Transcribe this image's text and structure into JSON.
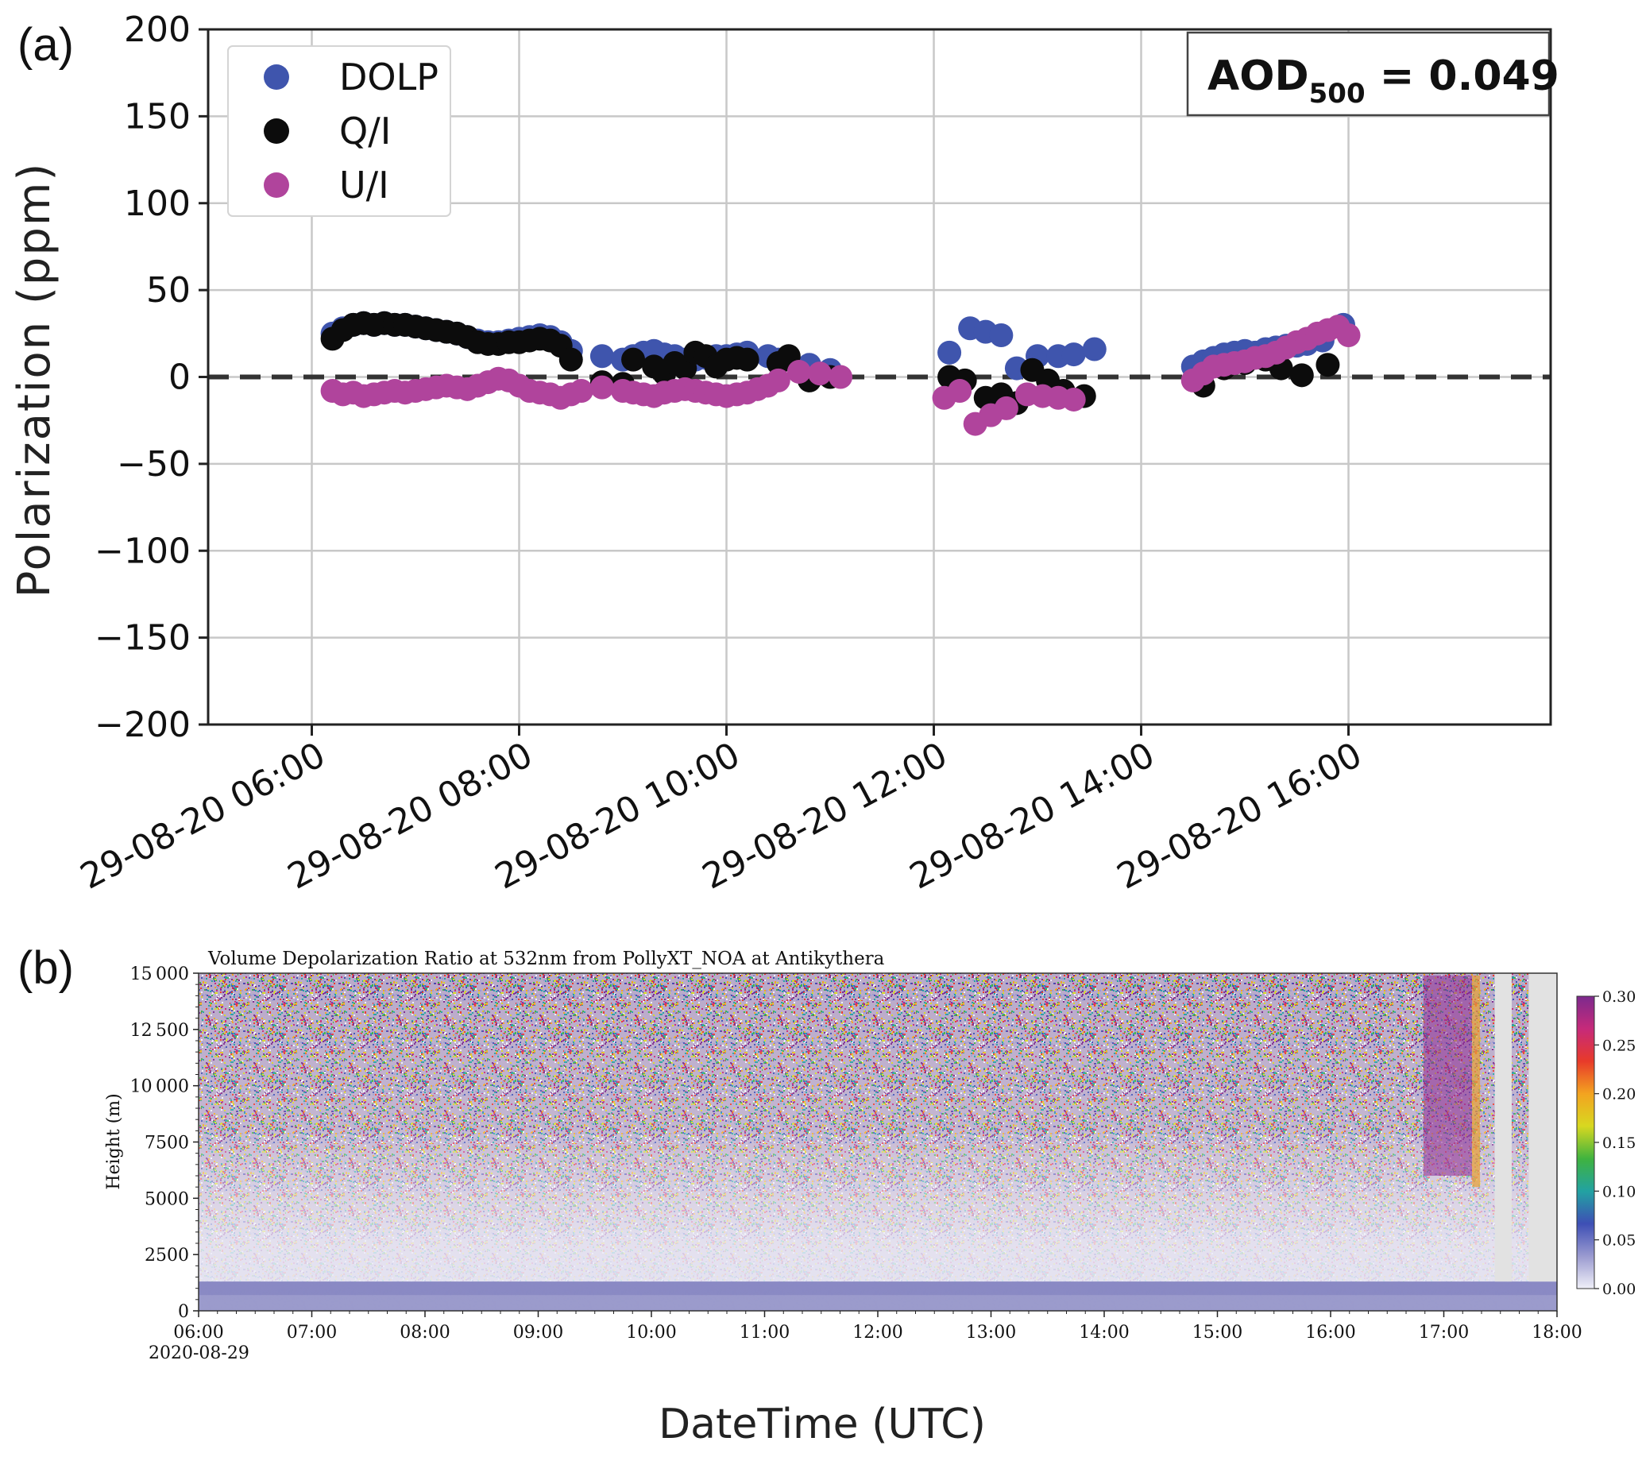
{
  "panel_labels": [
    "(a)",
    "(b)"
  ],
  "colors": {
    "DOLP": "#3f55ad",
    "Q/I": "#0c0c0c",
    "U/I": "#b0449c",
    "grid": "#c8c8c8",
    "zero_line": "#333333"
  },
  "annotation_a": {
    "prefix": "AOD",
    "subscript": "500",
    "suffix": " = 0.049"
  },
  "shared_x_label": "DateTime (UTC)",
  "chart_data": [
    {
      "type": "scatter",
      "panel": "(a)",
      "title": "",
      "xlabel": "",
      "ylabel": "Polarization  (ppm)",
      "ylim": [
        -200,
        200
      ],
      "yticks": [
        200,
        150,
        100,
        50,
        0,
        -50,
        -100,
        -150,
        -200
      ],
      "ytick_labels": [
        "200",
        "150",
        "100",
        "50",
        "0",
        "−50",
        "−100",
        "−150",
        "−200"
      ],
      "xlim_hours": [
        5.0,
        17.95
      ],
      "xticks_hours": [
        6,
        8,
        10,
        12,
        14,
        16
      ],
      "xtick_labels": [
        "29-08-20 06:00",
        "29-08-20 08:00",
        "29-08-20 10:00",
        "29-08-20 12:00",
        "29-08-20 14:00",
        "29-08-20 16:00"
      ],
      "grid": true,
      "legend_position": "top-left",
      "reference_line": {
        "y": 0,
        "style": "dashed"
      },
      "series": [
        {
          "name": "DOLP",
          "x": [
            6.2,
            6.3,
            6.4,
            6.5,
            6.6,
            6.7,
            6.8,
            6.9,
            7.0,
            7.1,
            7.2,
            7.3,
            7.4,
            7.5,
            7.6,
            7.7,
            7.8,
            7.9,
            8.0,
            8.1,
            8.2,
            8.3,
            8.4,
            8.5,
            8.8,
            9.0,
            9.1,
            9.2,
            9.3,
            9.4,
            9.5,
            9.6,
            9.7,
            9.8,
            9.9,
            10.0,
            10.1,
            10.2,
            10.4,
            10.5,
            10.8,
            11.0,
            12.15,
            12.35,
            12.5,
            12.65,
            12.8,
            13.0,
            13.2,
            13.35,
            13.55,
            14.5,
            14.6,
            14.7,
            14.8,
            14.9,
            15.0,
            15.1,
            15.2,
            15.3,
            15.4,
            15.5,
            15.6,
            15.75,
            15.95
          ],
          "y": [
            25,
            28,
            30,
            31,
            30,
            31,
            30,
            30,
            29,
            28,
            27,
            26,
            25,
            23,
            21,
            20,
            20,
            21,
            22,
            23,
            24,
            23,
            20,
            15,
            12,
            10,
            12,
            14,
            15,
            13,
            12,
            10,
            10,
            11,
            12,
            12,
            13,
            14,
            12,
            10,
            7,
            4,
            14,
            28,
            26,
            24,
            5,
            12,
            12,
            13,
            16,
            6,
            9,
            11,
            13,
            14,
            15,
            14,
            16,
            17,
            18,
            18,
            19,
            21,
            30
          ]
        },
        {
          "name": "Q/I",
          "x": [
            6.2,
            6.3,
            6.4,
            6.5,
            6.6,
            6.7,
            6.8,
            6.9,
            7.0,
            7.1,
            7.2,
            7.3,
            7.4,
            7.5,
            7.6,
            7.7,
            7.8,
            7.9,
            8.0,
            8.1,
            8.2,
            8.3,
            8.4,
            8.5,
            8.8,
            9.0,
            9.1,
            9.3,
            9.4,
            9.5,
            9.6,
            9.7,
            9.8,
            9.9,
            10.0,
            10.1,
            10.2,
            10.5,
            10.6,
            10.8,
            11.0,
            12.15,
            12.3,
            12.5,
            12.65,
            12.8,
            12.95,
            13.1,
            13.25,
            13.45,
            14.6,
            14.8,
            15.0,
            15.2,
            15.35,
            15.55,
            15.8
          ],
          "y": [
            22,
            27,
            30,
            31,
            30,
            31,
            30,
            30,
            29,
            28,
            27,
            26,
            25,
            23,
            20,
            19,
            19,
            20,
            20,
            21,
            22,
            21,
            18,
            10,
            -3,
            -4,
            10,
            6,
            2,
            8,
            5,
            14,
            12,
            6,
            10,
            11,
            10,
            8,
            12,
            -2,
            0,
            0,
            -2,
            -12,
            -10,
            -15,
            4,
            -2,
            -8,
            -11,
            -5,
            5,
            8,
            10,
            5,
            1,
            7
          ]
        },
        {
          "name": "U/I",
          "x": [
            6.2,
            6.3,
            6.4,
            6.5,
            6.6,
            6.7,
            6.8,
            6.9,
            7.0,
            7.1,
            7.2,
            7.3,
            7.4,
            7.5,
            7.6,
            7.7,
            7.8,
            7.9,
            8.0,
            8.1,
            8.2,
            8.3,
            8.4,
            8.5,
            8.6,
            8.8,
            9.0,
            9.1,
            9.2,
            9.3,
            9.4,
            9.5,
            9.6,
            9.7,
            9.8,
            9.9,
            10.0,
            10.1,
            10.2,
            10.3,
            10.4,
            10.5,
            10.7,
            10.9,
            11.1,
            12.1,
            12.25,
            12.4,
            12.55,
            12.7,
            12.9,
            13.05,
            13.2,
            13.35,
            14.5,
            14.6,
            14.7,
            14.8,
            14.9,
            15.0,
            15.1,
            15.2,
            15.3,
            15.4,
            15.5,
            15.6,
            15.7,
            15.8,
            15.9,
            16.0
          ],
          "y": [
            -8,
            -10,
            -9,
            -11,
            -10,
            -9,
            -8,
            -9,
            -8,
            -7,
            -6,
            -5,
            -6,
            -7,
            -5,
            -3,
            -1,
            -2,
            -5,
            -8,
            -9,
            -10,
            -12,
            -10,
            -8,
            -6,
            -8,
            -9,
            -10,
            -11,
            -9,
            -8,
            -7,
            -8,
            -9,
            -10,
            -11,
            -10,
            -9,
            -7,
            -5,
            -2,
            3,
            2,
            0,
            -12,
            -8,
            -27,
            -22,
            -18,
            -10,
            -11,
            -12,
            -13,
            -2,
            2,
            6,
            7,
            8,
            9,
            11,
            12,
            14,
            17,
            20,
            22,
            25,
            27,
            29,
            24
          ]
        }
      ]
    },
    {
      "type": "heatmap",
      "panel": "(b)",
      "title": "Volume Depolarization Ratio at 532nm from PollyXT_NOA at Antikythera",
      "xlabel": "",
      "ylabel": "Height (m)",
      "ylim": [
        0,
        15000
      ],
      "yticks": [
        0,
        2500,
        5000,
        7500,
        10000,
        12500,
        15000
      ],
      "ytick_labels": [
        "0",
        "2500",
        "5000",
        "7500",
        "10 000",
        "12 500",
        "15 000"
      ],
      "xlim_hours": [
        6,
        18
      ],
      "xticks_hours": [
        6,
        7,
        8,
        9,
        10,
        11,
        12,
        13,
        14,
        15,
        16,
        17,
        18
      ],
      "xtick_labels": [
        "06:00",
        "07:00",
        "08:00",
        "09:00",
        "10:00",
        "11:00",
        "12:00",
        "13:00",
        "14:00",
        "15:00",
        "16:00",
        "17:00",
        "18:00"
      ],
      "date_label": "2020-08-29",
      "no_data_hours": [
        [
          17.45,
          17.6
        ],
        [
          17.75,
          18.0
        ]
      ],
      "colorbar": {
        "min": 0.0,
        "max": 0.3,
        "ticks": [
          0.3,
          0.25,
          0.2,
          0.15,
          0.1,
          0.05,
          0.0
        ],
        "tick_labels": [
          "0.30",
          "0.25",
          "0.20",
          "0.15",
          "0.10",
          "0.05",
          "0.00"
        ],
        "colors": [
          "#f0f0f8",
          "#9a9ad0",
          "#3e4fb5",
          "#22a2a2",
          "#3fb33f",
          "#d8d820",
          "#f3a320",
          "#e83a2a",
          "#c62a7a",
          "#7c2a8e"
        ]
      }
    }
  ]
}
